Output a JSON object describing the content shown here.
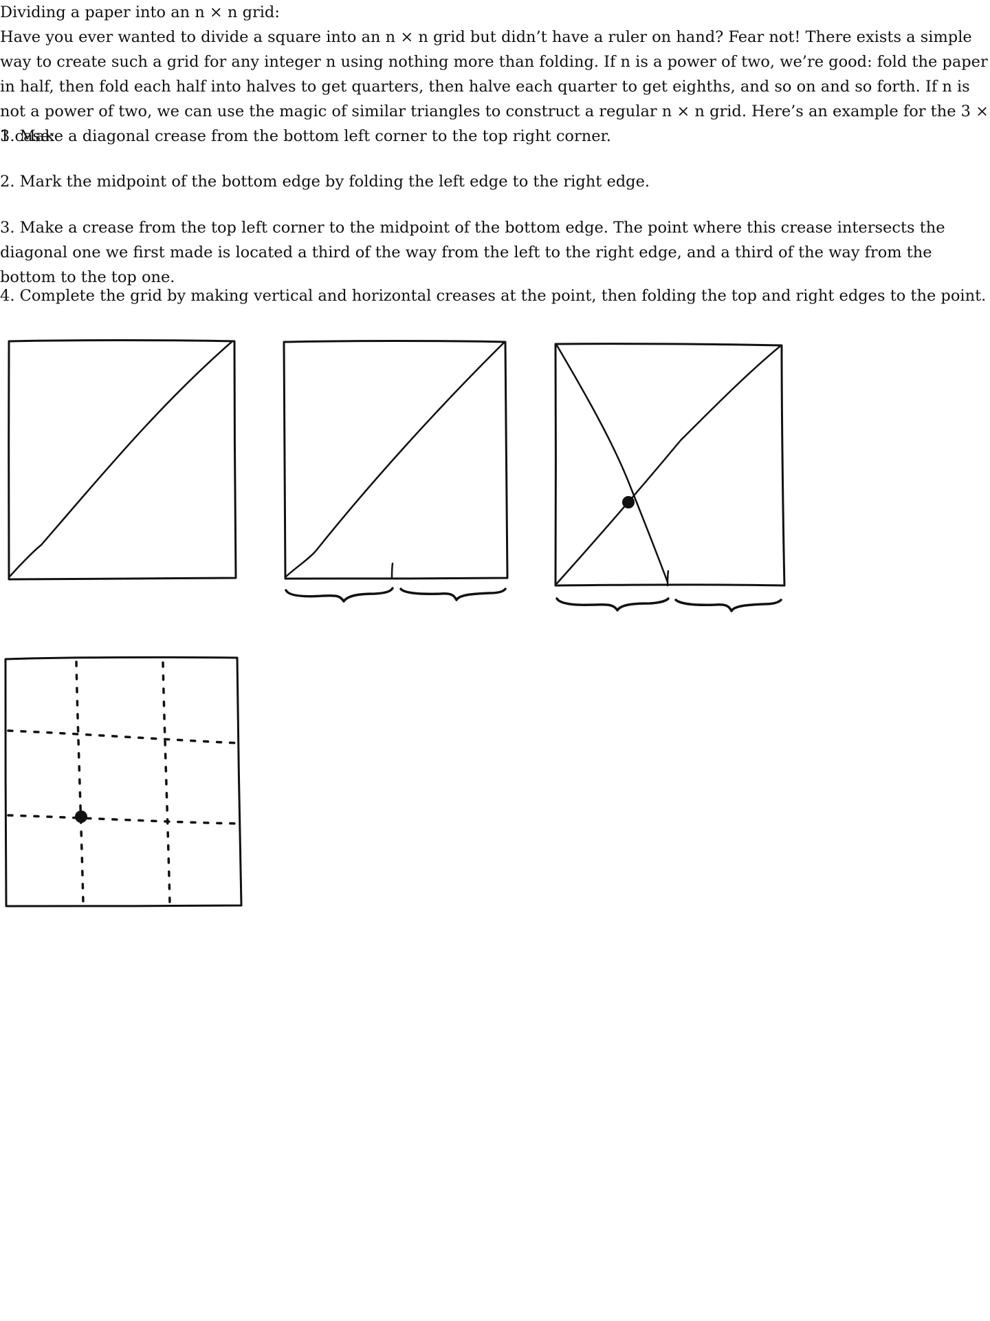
{
  "article": {
    "title": "Dividing a paper into an n × n grid:",
    "intro": "Have you ever wanted to divide a square into an n × n grid but didn’t have a ruler on hand? Fear not! There exists a simple way to create such a grid for any integer n using nothing more than folding. If n is a power of two, we’re good: fold the paper in half, then fold each half into halves to get quarters, then halve each quarter to get eighths, and so on and so forth. If n is not a power of two, we can use the magic of similar triangles to construct a regular n × n grid. Here’s an example for the 3 × 3 case:",
    "steps": [
      "1. Make a diagonal crease from the bottom left corner to the top right corner.",
      "2. Mark the midpoint of the bottom edge by folding the left edge to the right edge.",
      "3. Make a crease from the top left corner to the midpoint of the bottom edge. The point where this crease intersects the diagonal one we first made is located a third of the way from the left to the right edge, and a third of the way from the bottom to the top one.",
      "4. Complete the grid by making vertical and horizontal creases at the point, then folding the top and right edges to the point."
    ]
  },
  "illustrations": [
    {
      "step": 1,
      "content": "square with diagonal crease"
    },
    {
      "step": 2,
      "content": "diagonal crease with bottom midpoint mark and half braces"
    },
    {
      "step": 3,
      "content": "diagonal and corner-to-midpoint creases with intersection point"
    },
    {
      "step": 4,
      "content": "dotted 3 × 3 grid creases with point"
    }
  ]
}
